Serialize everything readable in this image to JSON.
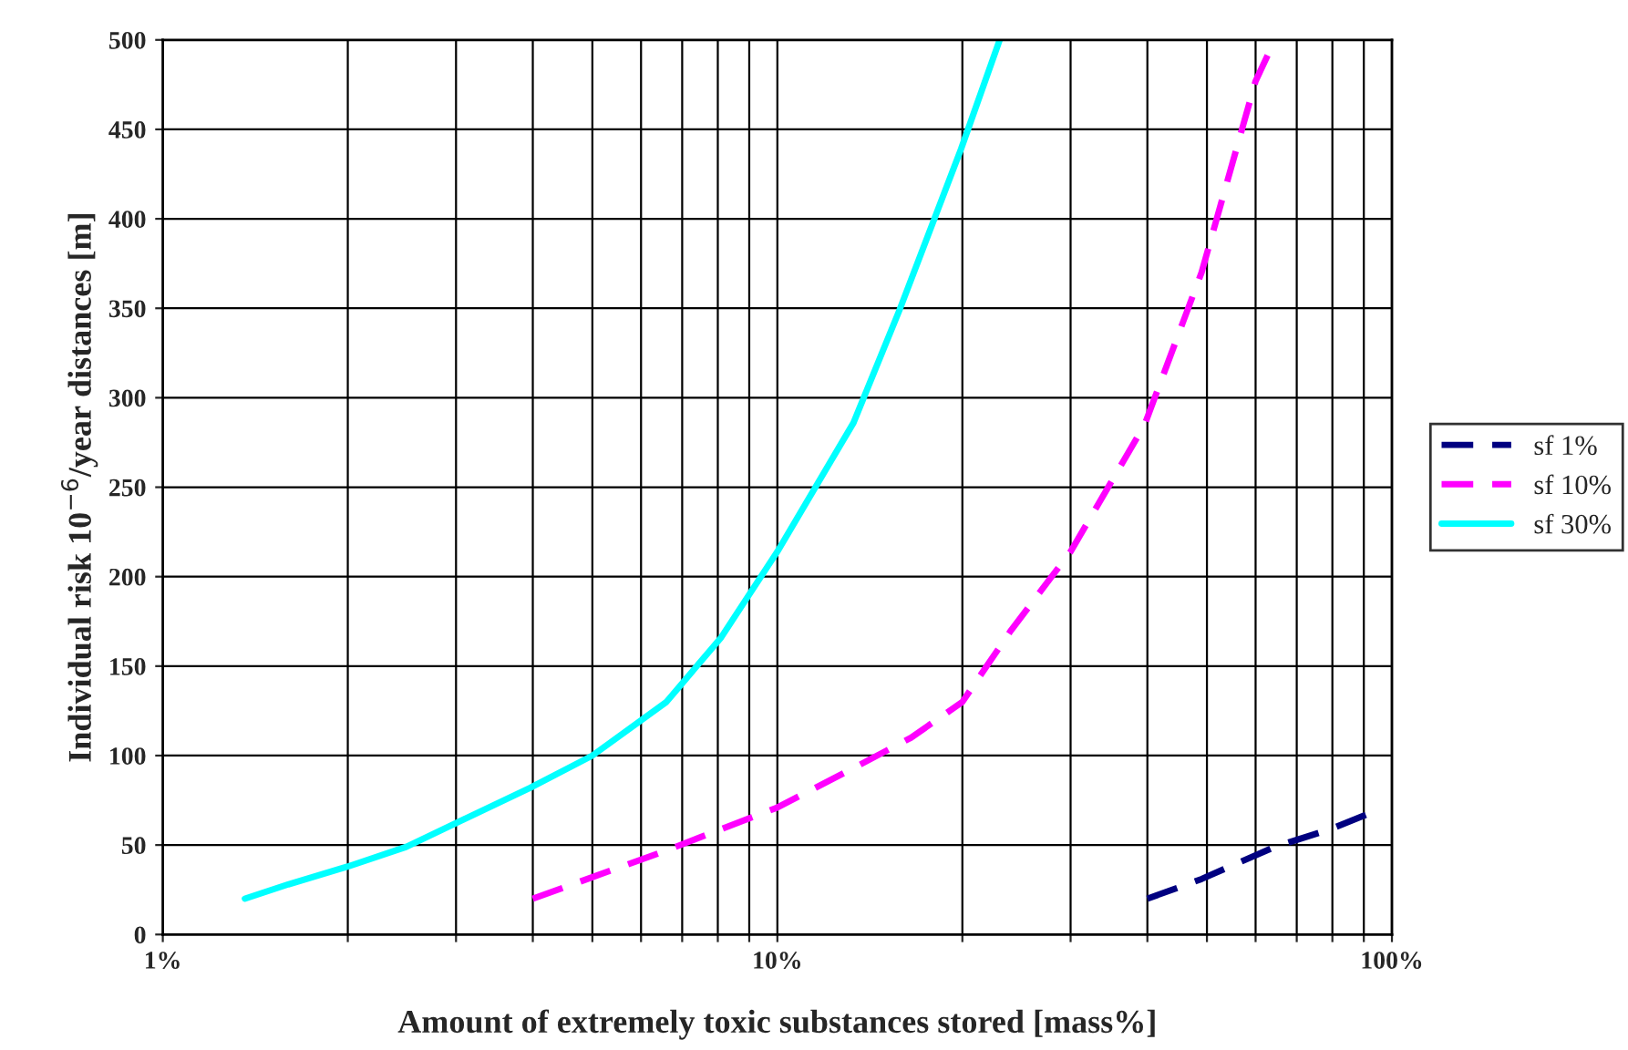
{
  "chart_data": {
    "type": "line",
    "xlabel": "Amount of extremely toxic substances stored [mass%]",
    "ylabel": "Individual risk 10$^{−6}$/year distances [m]",
    "log": "x",
    "xlim": [
      1,
      100
    ],
    "ylim": [
      0,
      500
    ],
    "xticks": [
      {
        "value": 1,
        "label": "1%"
      },
      {
        "value": 2,
        "label": null
      },
      {
        "value": 3,
        "label": null
      },
      {
        "value": 4,
        "label": null
      },
      {
        "value": 5,
        "label": null
      },
      {
        "value": 6,
        "label": null
      },
      {
        "value": 7,
        "label": null
      },
      {
        "value": 8,
        "label": null
      },
      {
        "value": 9,
        "label": null
      },
      {
        "value": 10,
        "label": "10%"
      },
      {
        "value": 20,
        "label": null
      },
      {
        "value": 30,
        "label": null
      },
      {
        "value": 40,
        "label": null
      },
      {
        "value": 50,
        "label": null
      },
      {
        "value": 60,
        "label": null
      },
      {
        "value": 70,
        "label": null
      },
      {
        "value": 80,
        "label": null
      },
      {
        "value": 90,
        "label": null
      },
      {
        "value": 100,
        "label": "100%"
      }
    ],
    "yticks": [
      0,
      50,
      100,
      150,
      200,
      250,
      300,
      350,
      400,
      450,
      500
    ],
    "grid": true,
    "legend": "right",
    "series": [
      {
        "name": "sf 1%",
        "color": "#000080",
        "line_style": "dashed",
        "x": [
          40,
          49,
          64.5,
          79.6,
          90.8
        ],
        "values": [
          20,
          31,
          49,
          59,
          67
        ]
      },
      {
        "name": "sf 10%",
        "color": "#ff00ff",
        "line_style": "dashed",
        "x": [
          4,
          6.6,
          10,
          13.3,
          16.5,
          20,
          24,
          30,
          39.6,
          49,
          60,
          64.5
        ],
        "values": [
          20,
          47,
          71,
          93,
          110,
          130,
          170,
          214,
          285,
          370,
          477,
          500
        ]
      },
      {
        "name": "sf 30%",
        "color": "#00ffff",
        "line_style": "solid",
        "x": [
          1.36,
          1.6,
          2.0,
          2.49,
          3.96,
          5,
          6.6,
          8.1,
          10,
          13.3,
          15.8,
          19.9,
          23
        ],
        "values": [
          20,
          28,
          38,
          49,
          82,
          100,
          130,
          166,
          214,
          286,
          349,
          439,
          500
        ]
      }
    ]
  }
}
